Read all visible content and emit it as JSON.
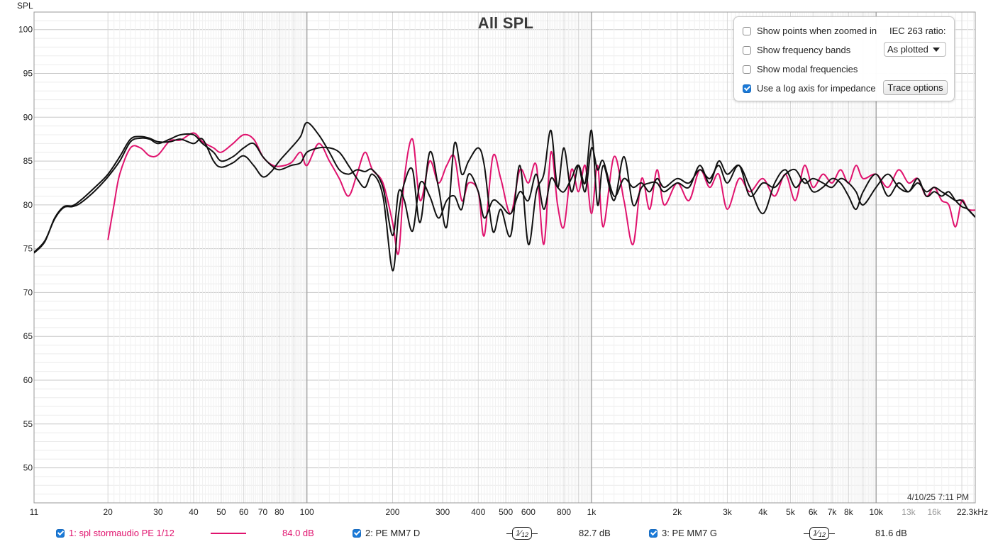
{
  "chart_data": {
    "type": "line",
    "title": "All SPL",
    "ylabel": "SPL",
    "xlabel": "",
    "x_scale": "log",
    "xlim": [
      11,
      22300
    ],
    "ylim": [
      46,
      102
    ],
    "grid": true,
    "y_ticks": [
      100,
      95,
      90,
      85,
      80,
      75,
      70,
      65,
      60,
      55,
      50
    ],
    "x_ticks": [
      {
        "value": 11,
        "label": "11"
      },
      {
        "value": 20,
        "label": "20"
      },
      {
        "value": 30,
        "label": "30"
      },
      {
        "value": 40,
        "label": "40"
      },
      {
        "value": 50,
        "label": "50"
      },
      {
        "value": 60,
        "label": "60"
      },
      {
        "value": 70,
        "label": "70"
      },
      {
        "value": 80,
        "label": "80"
      },
      {
        "value": 100,
        "label": "100"
      },
      {
        "value": 200,
        "label": "200"
      },
      {
        "value": 300,
        "label": "300"
      },
      {
        "value": 400,
        "label": "400"
      },
      {
        "value": 500,
        "label": "500"
      },
      {
        "value": 600,
        "label": "600"
      },
      {
        "value": 800,
        "label": "800"
      },
      {
        "value": 1000,
        "label": "1k"
      },
      {
        "value": 2000,
        "label": "2k"
      },
      {
        "value": 3000,
        "label": "3k"
      },
      {
        "value": 4000,
        "label": "4k"
      },
      {
        "value": 5000,
        "label": "5k"
      },
      {
        "value": 6000,
        "label": "6k"
      },
      {
        "value": 7000,
        "label": "7k"
      },
      {
        "value": 8000,
        "label": "8k"
      },
      {
        "value": 10000,
        "label": "10k"
      },
      {
        "value": 13000,
        "label": "13k"
      },
      {
        "value": 16000,
        "label": "16k"
      },
      {
        "value": 22300,
        "label": "22.3kHz"
      }
    ],
    "series": [
      {
        "name": "1: spl stormaudio PE 1/12",
        "color": "#e0136e",
        "x": [
          20,
          21,
          22,
          24,
          26,
          28,
          30,
          33,
          36,
          40,
          43,
          47,
          50,
          55,
          60,
          65,
          70,
          75,
          80,
          88,
          95,
          100,
          110,
          120,
          130,
          140,
          150,
          160,
          170,
          185,
          200,
          210,
          220,
          235,
          250,
          270,
          290,
          310,
          330,
          350,
          370,
          400,
          420,
          450,
          480,
          520,
          560,
          600,
          640,
          680,
          720,
          760,
          800,
          850,
          900,
          950,
          1000,
          1050,
          1100,
          1200,
          1300,
          1400,
          1500,
          1600,
          1700,
          1800,
          2000,
          2200,
          2400,
          2600,
          2800,
          3000,
          3300,
          3600,
          4000,
          4400,
          4800,
          5200,
          5600,
          6000,
          6500,
          7000,
          7500,
          8000,
          8500,
          9000,
          10000,
          11000,
          12000,
          13000,
          14000,
          15000,
          16000,
          17000,
          18000,
          19000,
          20000,
          21000,
          22300
        ],
        "y": [
          76,
          80,
          83.5,
          86.5,
          86.5,
          85.6,
          85.7,
          87.3,
          87.4,
          88.2,
          87.2,
          86.5,
          86.0,
          87.0,
          88.0,
          87.5,
          85.5,
          84.6,
          84.4,
          84.8,
          86.0,
          84.5,
          87.0,
          85.0,
          83.0,
          81.0,
          83.5,
          86.0,
          84.0,
          82.5,
          78.0,
          74.5,
          83.0,
          87.5,
          80.5,
          85.0,
          82.5,
          84.5,
          85.5,
          80.5,
          82.5,
          81.5,
          76.5,
          85.5,
          83.0,
          79.0,
          84.0,
          82.5,
          84.5,
          75.5,
          86.0,
          80.0,
          77.5,
          84.0,
          81.5,
          84.5,
          79.0,
          84.5,
          77.5,
          85.5,
          80.5,
          75.5,
          83.0,
          79.5,
          84.0,
          80.0,
          82.5,
          80.5,
          84.0,
          82.0,
          83.5,
          79.5,
          83.0,
          81.5,
          83.0,
          81.0,
          83.5,
          80.5,
          84.5,
          82.0,
          83.5,
          82.5,
          84.0,
          82.5,
          84.5,
          83.0,
          83.5,
          82.0,
          84.0,
          82.5,
          83.0,
          81.0,
          82.0,
          80.5,
          80.0,
          77.5,
          80.5,
          79.5,
          79.4
        ]
      },
      {
        "name": "2: PE MM7 D",
        "color": "#111111",
        "x": [
          11,
          12,
          13,
          14,
          15,
          16,
          18,
          20,
          22,
          24,
          26,
          28,
          30,
          33,
          36,
          40,
          43,
          47,
          50,
          55,
          60,
          65,
          70,
          75,
          80,
          88,
          95,
          100,
          110,
          120,
          130,
          140,
          150,
          160,
          170,
          185,
          200,
          210,
          220,
          235,
          250,
          270,
          290,
          310,
          330,
          350,
          370,
          400,
          420,
          450,
          480,
          520,
          560,
          600,
          640,
          680,
          720,
          760,
          800,
          850,
          900,
          950,
          1000,
          1050,
          1100,
          1200,
          1300,
          1400,
          1500,
          1600,
          1700,
          1800,
          2000,
          2200,
          2400,
          2600,
          2800,
          3000,
          3300,
          3600,
          4000,
          4400,
          4800,
          5200,
          5600,
          6000,
          6500,
          7000,
          7500,
          8000,
          8500,
          9000,
          10000,
          11000,
          12000,
          13000,
          14000,
          15000,
          16000,
          17000,
          18000,
          19000,
          20000,
          21000,
          22300
        ],
        "y": [
          74.5,
          75.8,
          78.5,
          79.8,
          79.9,
          80.5,
          82.0,
          83.5,
          85.5,
          87.5,
          87.8,
          87.6,
          87.2,
          87.2,
          87.5,
          87.0,
          87.5,
          85.0,
          84.3,
          84.8,
          85.6,
          84.5,
          83.2,
          83.8,
          85.0,
          86.5,
          87.8,
          89.4,
          88.0,
          86.0,
          84.0,
          83.5,
          84.0,
          83.8,
          84.0,
          82.0,
          76.5,
          81.5,
          80.5,
          77.0,
          82.5,
          81.0,
          78.5,
          80.5,
          81.0,
          79.5,
          83.5,
          81.5,
          78.5,
          80.5,
          80.0,
          79.0,
          81.5,
          80.5,
          83.5,
          79.5,
          83.0,
          82.0,
          81.5,
          83.0,
          84.5,
          81.5,
          86.5,
          84.0,
          85.0,
          81.0,
          83.0,
          82.0,
          82.5,
          81.5,
          83.0,
          82.0,
          83.0,
          82.5,
          84.0,
          83.0,
          84.5,
          82.5,
          84.5,
          81.0,
          82.5,
          82.0,
          83.5,
          84.0,
          82.5,
          83.0,
          82.5,
          82.0,
          83.0,
          82.5,
          81.5,
          80.0,
          82.0,
          83.5,
          82.0,
          81.5,
          82.5,
          81.5,
          82.0,
          81.5,
          81.0,
          80.5,
          80.5,
          79.5,
          78.6
        ]
      },
      {
        "name": "3: PE MM7 G",
        "color": "#111111",
        "x": [
          11,
          12,
          13,
          14,
          15,
          16,
          18,
          20,
          22,
          24,
          26,
          28,
          30,
          33,
          36,
          40,
          43,
          47,
          50,
          55,
          60,
          65,
          70,
          75,
          80,
          88,
          95,
          100,
          110,
          120,
          130,
          140,
          150,
          160,
          170,
          185,
          200,
          210,
          220,
          235,
          250,
          270,
          290,
          310,
          330,
          350,
          370,
          400,
          420,
          450,
          480,
          520,
          560,
          600,
          640,
          680,
          720,
          760,
          800,
          850,
          900,
          950,
          1000,
          1050,
          1100,
          1200,
          1300,
          1400,
          1500,
          1600,
          1700,
          1800,
          2000,
          2200,
          2400,
          2600,
          2800,
          3000,
          3300,
          3600,
          4000,
          4400,
          4800,
          5200,
          5600,
          6000,
          6500,
          7000,
          7500,
          8000,
          8500,
          9000,
          10000,
          11000,
          12000,
          13000,
          14000,
          15000,
          16000,
          17000,
          18000,
          19000,
          20000,
          21000,
          22300
        ],
        "y": [
          74.6,
          75.9,
          78.4,
          79.7,
          79.8,
          80.2,
          81.6,
          83.2,
          85.0,
          87.2,
          87.6,
          87.5,
          87.0,
          87.5,
          88.0,
          88.0,
          87.0,
          86.0,
          85.0,
          85.5,
          86.5,
          87.0,
          85.5,
          84.5,
          84.0,
          84.5,
          84.8,
          86.0,
          86.5,
          86.5,
          86.0,
          84.5,
          83.0,
          82.0,
          83.5,
          81.0,
          72.5,
          79.0,
          82.5,
          84.0,
          78.0,
          86.0,
          82.0,
          77.5,
          87.0,
          83.5,
          85.0,
          86.5,
          84.5,
          77.0,
          79.5,
          76.5,
          84.5,
          75.5,
          81.5,
          83.5,
          88.5,
          82.0,
          86.5,
          81.5,
          84.5,
          82.5,
          88.5,
          80.0,
          84.5,
          80.5,
          85.5,
          80.0,
          82.0,
          82.5,
          82.5,
          81.5,
          82.5,
          82.0,
          84.5,
          82.5,
          85.0,
          83.5,
          84.5,
          82.0,
          79.0,
          82.5,
          84.0,
          82.0,
          83.0,
          81.5,
          82.0,
          83.0,
          82.5,
          81.0,
          79.5,
          81.5,
          83.5,
          81.0,
          82.5,
          81.5,
          83.0,
          81.0,
          81.5,
          81.0,
          81.5,
          80.5,
          79.8,
          79.5,
          78.6
        ]
      }
    ]
  },
  "timestamp": "4/10/25 7:11 PM",
  "options_panel": {
    "show_points": {
      "label": "Show points when zoomed in",
      "checked": false
    },
    "show_bands": {
      "label": "Show frequency bands",
      "checked": false
    },
    "show_modal": {
      "label": "Show modal frequencies",
      "checked": false
    },
    "log_impedance": {
      "label": "Use a log axis for impedance",
      "checked": true
    },
    "iec_label": "IEC 263 ratio:",
    "iec_value": "As plotted",
    "trace_options_label": "Trace options"
  },
  "legend": [
    {
      "label": "1: spl stormaudio PE 1/12",
      "value": "84.0 dB",
      "color": "#e0136e",
      "smoothing": ""
    },
    {
      "label": "2: PE MM7 D",
      "value": "82.7 dB",
      "color": "#111111",
      "smoothing_num": "1",
      "smoothing_den": "12"
    },
    {
      "label": "3: PE MM7 G",
      "value": "81.6 dB",
      "color": "#111111",
      "smoothing_num": "1",
      "smoothing_den": "12"
    }
  ]
}
